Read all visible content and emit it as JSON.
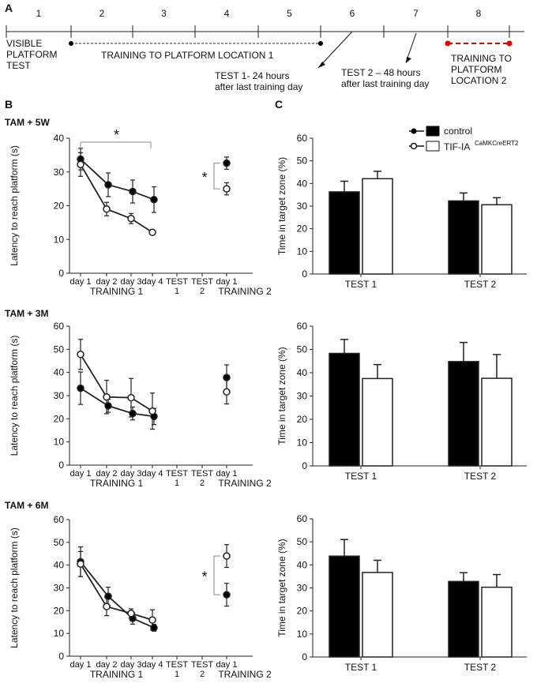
{
  "colors": {
    "filled": "#000000",
    "open": "#ffffff",
    "line": "#222222",
    "accent": "#e00000"
  },
  "timeline": {
    "panel_label": "A",
    "days": [
      "1",
      "2",
      "3",
      "4",
      "5",
      "6",
      "7",
      "8"
    ],
    "visible_test_label": [
      "VISIBLE",
      "PLATFORM",
      "TEST"
    ],
    "training1_label": "TRAINING TO PLATFORM LOCATION 1",
    "test1_label": [
      "TEST 1- 24 hours",
      "after last training day"
    ],
    "test2_label": [
      "TEST 2 – 48 hours",
      "after last training day"
    ],
    "training2_label": [
      "TRAINING TO",
      "PLATFORM",
      "LOCATION 2"
    ]
  },
  "panel_b_label": "B",
  "panel_c_label": "C",
  "legend": {
    "control": "control",
    "tif": "TIF-IA",
    "tif_sup": "CaMKCreERT2"
  },
  "chart_data": [
    {
      "type": "line",
      "group": "TAM + 5W",
      "ylabel": "Latency to reach platform (s)",
      "ylim": [
        0,
        40
      ],
      "yticks": [
        "0",
        "10",
        "20",
        "30",
        "40"
      ],
      "xtick_labels": [
        "day 1",
        "day 2",
        "day 3",
        "day 4",
        "TEST 1",
        "TEST 2",
        "day 1"
      ],
      "xgroup_labels": [
        "TRAINING 1",
        "TRAINING 2"
      ],
      "series": [
        {
          "name": "control",
          "values": [
            33.8,
            26.2,
            24.2,
            21.8
          ],
          "err": [
            3.2,
            3.5,
            3.4,
            3.8
          ],
          "training2": 32.6,
          "training2_err": 1.8
        },
        {
          "name": "TIF-IA CaMKCreERT2",
          "values": [
            32.2,
            19.0,
            16.2,
            12.1
          ],
          "err": [
            3.5,
            2.0,
            1.5,
            0.6
          ],
          "training2": 25.0,
          "training2_err": 1.8
        }
      ],
      "sig_training1": "*",
      "sig_training2": "*"
    },
    {
      "type": "bar",
      "group": "TAM + 5W",
      "ylabel": "Time in target zone (%)",
      "ylim": [
        0,
        60
      ],
      "yticks": [
        "0",
        "10",
        "20",
        "30",
        "40",
        "50",
        "60"
      ],
      "categories": [
        "TEST 1",
        "TEST 2"
      ],
      "series": [
        {
          "name": "control",
          "values": [
            36.3,
            32.3
          ],
          "err": [
            4.7,
            3.5
          ]
        },
        {
          "name": "TIF-IA CaMKCreERT2",
          "values": [
            42.1,
            30.6
          ],
          "err": [
            3.3,
            3.1
          ]
        }
      ]
    },
    {
      "type": "line",
      "group": "TAM + 3M",
      "ylabel": "Latency to reach platform (s)",
      "ylim": [
        0,
        60
      ],
      "yticks": [
        "0",
        "10",
        "20",
        "30",
        "40",
        "50",
        "60"
      ],
      "xtick_labels": [
        "day 1",
        "day 2",
        "day 3",
        "day 4",
        "TEST 1",
        "TEST 2",
        "day 1"
      ],
      "xgroup_labels": [
        "TRAINING 1",
        "TRAINING 2"
      ],
      "series": [
        {
          "name": "control",
          "values": [
            33.2,
            25.6,
            22.3,
            21.0
          ],
          "err": [
            7.0,
            2.8,
            2.8,
            3.5
          ]
        },
        {
          "name": "TIF-IA CaMKCreERT2",
          "values": [
            47.8,
            29.4,
            29.1,
            23.3
          ],
          "err": [
            6.5,
            7.2,
            8.3,
            7.8
          ]
        }
      ],
      "training2": [
        {
          "name": "control",
          "value": 37.8,
          "err": 5.5
        },
        {
          "name": "TIF-IA CaMKCreERT2",
          "value": 31.6,
          "err": 5.2
        }
      ]
    },
    {
      "type": "bar",
      "group": "TAM + 3M",
      "ylabel": "Time in target zone (%)",
      "ylim": [
        0,
        60
      ],
      "yticks": [
        "0",
        "10",
        "20",
        "30",
        "40",
        "50",
        "60"
      ],
      "categories": [
        "TEST 1",
        "TEST 2"
      ],
      "series": [
        {
          "name": "control",
          "values": [
            48.3,
            44.8
          ],
          "err": [
            6.0,
            8.2
          ]
        },
        {
          "name": "TIF-IA CaMKCreERT2",
          "values": [
            37.5,
            37.6
          ],
          "err": [
            6.0,
            10.2
          ]
        }
      ]
    },
    {
      "type": "line",
      "group": "TAM + 6M",
      "ylabel": "Latency to reach platform (s)",
      "ylim": [
        0,
        60
      ],
      "yticks": [
        "0",
        "10",
        "20",
        "30",
        "40",
        "50",
        "60"
      ],
      "xtick_labels": [
        "day 1",
        "day 2",
        "day 3",
        "day 4",
        "TEST 1",
        "TEST 2",
        "day 1"
      ],
      "xgroup_labels": [
        "TRAINING 1",
        "TRAINING 2"
      ],
      "series": [
        {
          "name": "control",
          "values": [
            41.5,
            26.3,
            16.6,
            12.5
          ],
          "err": [
            6.5,
            4.0,
            2.5,
            1.5
          ]
        },
        {
          "name": "TIF-IA CaMKCreERT2",
          "values": [
            40.5,
            21.8,
            18.8,
            15.9
          ],
          "err": [
            5.5,
            4.0,
            2.0,
            4.5
          ]
        }
      ],
      "training2": [
        {
          "name": "control",
          "value": 27.0,
          "err": 5.0
        },
        {
          "name": "TIF-IA CaMKCreERT2",
          "value": 44.0,
          "err": 5.0
        }
      ],
      "sig_training2": "*"
    },
    {
      "type": "bar",
      "group": "TAM + 6M",
      "ylabel": "Time in target zone (%)",
      "ylim": [
        0,
        60
      ],
      "yticks": [
        "0",
        "10",
        "20",
        "30",
        "40",
        "50",
        "60"
      ],
      "categories": [
        "TEST 1",
        "TEST 2"
      ],
      "series": [
        {
          "name": "control",
          "values": [
            43.8,
            32.8
          ],
          "err": [
            7.2,
            3.8
          ]
        },
        {
          "name": "TIF-IA CaMKCreERT2",
          "values": [
            36.7,
            30.3
          ],
          "err": [
            5.3,
            5.5
          ]
        }
      ]
    }
  ]
}
